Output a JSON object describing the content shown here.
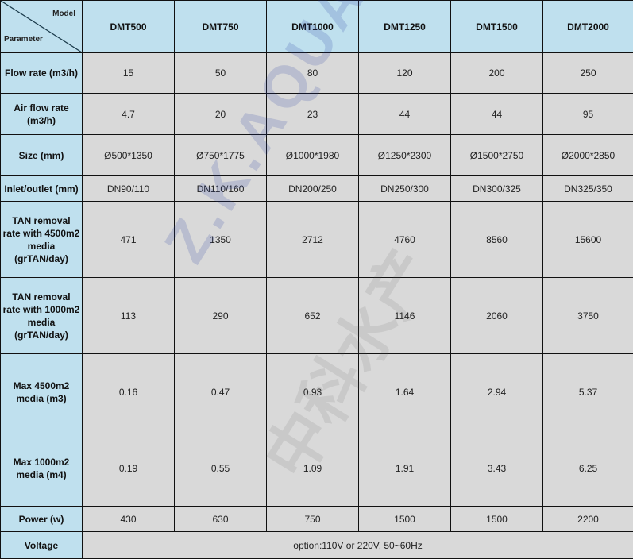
{
  "header": {
    "model_label": "Model",
    "parameter_label": "Parameter",
    "models": [
      "DMT500",
      "DMT750",
      "DMT1000",
      "DMT1250",
      "DMT1500",
      "DMT2000"
    ]
  },
  "rows": [
    {
      "label": "Flow rate (m3/h)",
      "values": [
        "15",
        "50",
        "80",
        "120",
        "200",
        "250"
      ]
    },
    {
      "label": "Air flow rate (m3/h)",
      "values": [
        "4.7",
        "20",
        "23",
        "44",
        "44",
        "95"
      ]
    },
    {
      "label": "Size (mm)",
      "values": [
        "Ø500*1350",
        "Ø750*1775",
        "Ø1000*1980",
        "Ø1250*2300",
        "Ø1500*2750",
        "Ø2000*2850"
      ]
    },
    {
      "label": "Inlet/outlet (mm)",
      "values": [
        "DN90/110",
        "DN110/160",
        "DN200/250",
        "DN250/300",
        "DN300/325",
        "DN325/350"
      ]
    },
    {
      "label": "TAN removal rate with 4500m2 media (grTAN/day)",
      "values": [
        "471",
        "1350",
        "2712",
        "4760",
        "8560",
        "15600"
      ]
    },
    {
      "label": "TAN removal rate with 1000m2  media (grTAN/day)",
      "values": [
        "113",
        "290",
        "652",
        "1146",
        "2060",
        "3750"
      ]
    },
    {
      "label": "Max 4500m2 media (m3)",
      "values": [
        "0.16",
        "0.47",
        "0.93",
        "1.64",
        "2.94",
        "5.37"
      ]
    },
    {
      "label": "Max 1000m2 media (m4)",
      "values": [
        "0.19",
        "0.55",
        "1.09",
        "1.91",
        "3.43",
        "6.25"
      ]
    },
    {
      "label": "Power (w)",
      "values": [
        "430",
        "630",
        "750",
        "1500",
        "1500",
        "2200"
      ]
    }
  ],
  "voltage": {
    "label": "Voltage",
    "value": "option:110V or 220V, 50~60Hz"
  },
  "watermark": {
    "latin": "Z.K.AQUA™",
    "chinese": "中科水产"
  },
  "colors": {
    "header_bg": "#bfe0ee",
    "cell_bg": "#d9d9d9"
  }
}
